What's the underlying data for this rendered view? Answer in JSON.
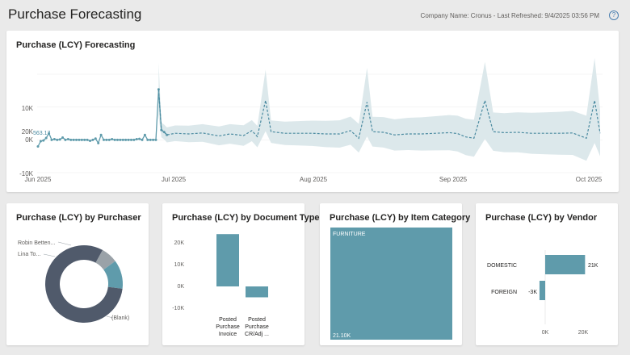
{
  "page": {
    "title": "Purchase Forecasting",
    "meta": "Company Name: Cronus - Last Refreshed: 9/4/2025 03:56 PM",
    "help_glyph": "?"
  },
  "colors": {
    "teal": "#5f9bab",
    "band": "#dce8eb",
    "slate": "#505a6b",
    "gray": "#9aa2a8"
  },
  "forecast": {
    "title": "Purchase (LCY) Forecasting",
    "y_ticks": [
      "20K",
      "10K",
      "0K",
      "-10K"
    ],
    "x_ticks": [
      "Jun 2025",
      "Jul 2025",
      "Aug 2025",
      "Sep 2025",
      "Oct 2025"
    ],
    "point_label": "563.17"
  },
  "purchaser": {
    "title": "Purchase (LCY) by Purchaser",
    "labels": [
      "Robin Betten...",
      "Lina To...",
      "(Blank)"
    ]
  },
  "doctype": {
    "title": "Purchase (LCY) by Document Type",
    "y_ticks": [
      "20K",
      "10K",
      "0K",
      "-10K"
    ],
    "cat1": [
      "Posted",
      "Purchase",
      "Invoice"
    ],
    "cat2": [
      "Posted",
      "Purchase",
      "CR/Adj ..."
    ]
  },
  "itemcat": {
    "title": "Purchase (LCY) by Item Category",
    "label": "FURNITURE",
    "value": "21.10K"
  },
  "vendor": {
    "title": "Purchase (LCY) by Vendor",
    "rows": [
      {
        "name": "DOMESTIC",
        "value": "21K"
      },
      {
        "name": "FOREIGN",
        "value": "-3K"
      }
    ],
    "x_ticks": [
      "0K",
      "20K"
    ]
  },
  "chart_data": [
    {
      "type": "line",
      "title": "Purchase (LCY) Forecasting",
      "x_range": [
        "2025-06-01",
        "2025-10-05"
      ],
      "ylim": [
        -10000,
        20000
      ],
      "series": [
        {
          "values": [
            [
              0,
              -2000
            ],
            [
              1,
              -400
            ],
            [
              2,
              -200
            ],
            [
              3,
              563.17
            ],
            [
              4,
              2000
            ],
            [
              5,
              0
            ],
            [
              6,
              200
            ],
            [
              7,
              0
            ],
            [
              8,
              100
            ],
            [
              9,
              700
            ],
            [
              10,
              0
            ],
            [
              11,
              200
            ],
            [
              12,
              0
            ],
            [
              13,
              0
            ],
            [
              14,
              0
            ],
            [
              15,
              0
            ],
            [
              16,
              0
            ],
            [
              17,
              0
            ],
            [
              18,
              0
            ],
            [
              19,
              -300
            ],
            [
              20,
              0
            ],
            [
              21,
              400
            ],
            [
              22,
              -1000
            ],
            [
              23,
              1500
            ],
            [
              24,
              0
            ],
            [
              25,
              0
            ],
            [
              26,
              0
            ],
            [
              27,
              200
            ],
            [
              28,
              0
            ],
            [
              29,
              0
            ],
            [
              30,
              0
            ],
            [
              31,
              0
            ],
            [
              32,
              0
            ],
            [
              33,
              0
            ],
            [
              34,
              0
            ],
            [
              35,
              0
            ],
            [
              36,
              200
            ],
            [
              37,
              300
            ],
            [
              38,
              0
            ],
            [
              39,
              1500
            ],
            [
              40,
              0
            ],
            [
              41,
              0
            ],
            [
              42,
              0
            ],
            [
              43,
              0
            ],
            [
              44,
              15400
            ],
            [
              45,
              3000
            ],
            [
              46,
              2400
            ],
            [
              47,
              1500
            ]
          ]
        },
        {
          "values": [
            [
              44,
              15400
            ],
            [
              45,
              3000
            ],
            [
              46,
              2400
            ],
            [
              47,
              1500
            ],
            [
              50,
              2000
            ],
            [
              55,
              1800
            ],
            [
              60,
              2100
            ],
            [
              66,
              1200
            ],
            [
              70,
              1800
            ],
            [
              75,
              1300
            ],
            [
              78,
              2800
            ],
            [
              80,
              1000
            ],
            [
              83,
              12000
            ],
            [
              85,
              2500
            ],
            [
              90,
              2000
            ],
            [
              95,
              2000
            ],
            [
              100,
              2000
            ],
            [
              105,
              1800
            ],
            [
              110,
              1800
            ],
            [
              114,
              2800
            ],
            [
              117,
              500
            ],
            [
              120,
              11500
            ],
            [
              122,
              2500
            ],
            [
              126,
              2300
            ],
            [
              130,
              1500
            ],
            [
              135,
              1800
            ],
            [
              140,
              1800
            ],
            [
              145,
              2000
            ],
            [
              150,
              2200
            ],
            [
              153,
              1900
            ],
            [
              156,
              900
            ],
            [
              159,
              500
            ],
            [
              163,
              12000
            ],
            [
              166,
              2500
            ],
            [
              170,
              2200
            ],
            [
              175,
              2300
            ],
            [
              180,
              2000
            ],
            [
              185,
              2000
            ],
            [
              190,
              2000
            ],
            [
              195,
              2100
            ],
            [
              200,
              500
            ],
            [
              203,
              12000
            ],
            [
              205,
              2000
            ]
          ]
        }
      ]
    },
    {
      "type": "pie",
      "title": "Purchase (LCY) by Purchaser",
      "labels": [
        "Robin Betten...",
        "Lina To...",
        "(Blank)"
      ],
      "values": [
        7,
        12,
        81
      ]
    },
    {
      "type": "bar",
      "title": "Purchase (LCY) by Document Type",
      "categories": [
        "Posted Purchase Invoice",
        "Posted Purchase CR/Adj ..."
      ],
      "values": [
        24000,
        -5000
      ],
      "ylim": [
        -10000,
        25000
      ]
    },
    {
      "type": "heatmap",
      "title": "Purchase (LCY) by Item Category",
      "categories": [
        "FURNITURE"
      ],
      "values": [
        21100
      ]
    },
    {
      "type": "bar",
      "title": "Purchase (LCY) by Vendor",
      "categories": [
        "DOMESTIC",
        "FOREIGN"
      ],
      "values": [
        21000,
        -3000
      ],
      "xlim": [
        -5000,
        25000
      ]
    }
  ]
}
